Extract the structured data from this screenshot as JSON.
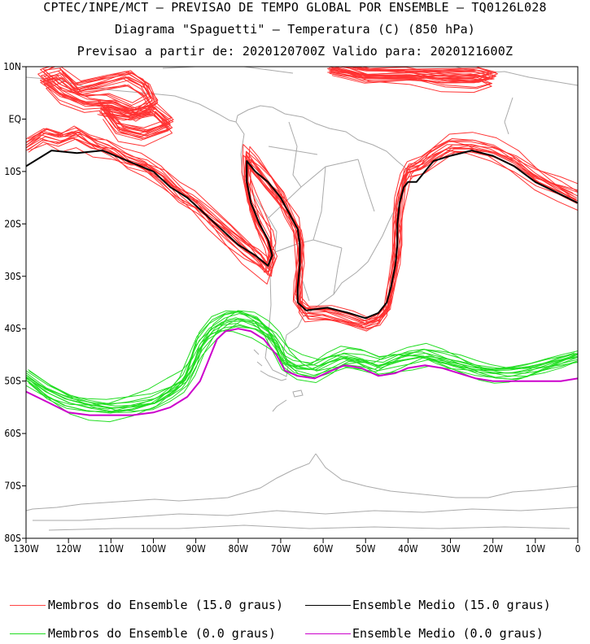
{
  "header": {
    "line1": "CPTEC/INPE/MCT – PREVISAO DE TEMPO GLOBAL POR ENSEMBLE – TQ0126L028",
    "line2": "Diagrama \"Spaguetti\" – Temperatura (C) (850 hPa)",
    "line3": "Previsao a partir de: 2020120700Z  Valido para: 2020121600Z"
  },
  "chart_data": {
    "type": "line",
    "title": "Diagrama \"Spaguetti\" – Temperatura (C) (850 hPa)",
    "xlabel": "",
    "ylabel": "",
    "xlim": [
      -130,
      0
    ],
    "ylim": [
      -80,
      10
    ],
    "x_ticks": [
      {
        "value": -130,
        "label": "130W"
      },
      {
        "value": -120,
        "label": "120W"
      },
      {
        "value": -110,
        "label": "110W"
      },
      {
        "value": -100,
        "label": "100W"
      },
      {
        "value": -90,
        "label": "90W"
      },
      {
        "value": -80,
        "label": "80W"
      },
      {
        "value": -70,
        "label": "70W"
      },
      {
        "value": -60,
        "label": "60W"
      },
      {
        "value": -50,
        "label": "50W"
      },
      {
        "value": -40,
        "label": "40W"
      },
      {
        "value": -30,
        "label": "30W"
      },
      {
        "value": -20,
        "label": "20W"
      },
      {
        "value": -10,
        "label": "10W"
      },
      {
        "value": 0,
        "label": "0"
      }
    ],
    "y_ticks": [
      {
        "value": 10,
        "label": "10N"
      },
      {
        "value": 0,
        "label": "EQ"
      },
      {
        "value": -10,
        "label": "10S"
      },
      {
        "value": -20,
        "label": "20S"
      },
      {
        "value": -30,
        "label": "30S"
      },
      {
        "value": -40,
        "label": "40S"
      },
      {
        "value": -50,
        "label": "50S"
      },
      {
        "value": -60,
        "label": "60S"
      },
      {
        "value": -70,
        "label": "70S"
      },
      {
        "value": -80,
        "label": "80S"
      }
    ],
    "series": [
      {
        "name": "Ensemble Medio (15.0 graus)",
        "color": "#000000",
        "segments": [
          [
            [
              -130,
              -9
            ],
            [
              -124,
              -6
            ],
            [
              -118,
              -6.5
            ],
            [
              -112,
              -6
            ],
            [
              -106,
              -8
            ],
            [
              -100,
              -10
            ],
            [
              -96,
              -13
            ],
            [
              -92,
              -15
            ],
            [
              -88,
              -18
            ],
            [
              -84,
              -21
            ],
            [
              -80,
              -24
            ],
            [
              -76,
              -26
            ],
            [
              -73,
              -28
            ],
            [
              -72,
              -26
            ],
            [
              -73,
              -23
            ],
            [
              -75,
              -20
            ],
            [
              -77,
              -16
            ],
            [
              -78,
              -12
            ],
            [
              -78,
              -8
            ],
            [
              -76,
              -10
            ],
            [
              -73,
              -12
            ],
            [
              -70,
              -15
            ],
            [
              -68,
              -18
            ],
            [
              -66,
              -21
            ],
            [
              -65.5,
              -24
            ],
            [
              -65.5,
              -28
            ],
            [
              -66,
              -32
            ],
            [
              -66,
              -35
            ],
            [
              -64,
              -36.5
            ],
            [
              -59,
              -36
            ],
            [
              -54,
              -37
            ],
            [
              -50,
              -38
            ],
            [
              -47,
              -37
            ],
            [
              -45,
              -35
            ],
            [
              -44,
              -32
            ],
            [
              -43,
              -28
            ],
            [
              -42.5,
              -24
            ],
            [
              -42.5,
              -20
            ],
            [
              -42,
              -16
            ],
            [
              -41,
              -13
            ],
            [
              -40,
              -12
            ],
            [
              -38,
              -12
            ],
            [
              -36,
              -10
            ],
            [
              -34,
              -8
            ],
            [
              -30,
              -7
            ],
            [
              -25,
              -6
            ],
            [
              -20,
              -7
            ],
            [
              -15,
              -9
            ],
            [
              -10,
              -12
            ],
            [
              -5,
              -14
            ],
            [
              0,
              -16
            ]
          ]
        ]
      },
      {
        "name": "Ensemble Medio (0.0 graus)",
        "color": "#cc00cc",
        "segments": [
          [
            [
              -130,
              -52
            ],
            [
              -125,
              -54
            ],
            [
              -120,
              -56
            ],
            [
              -115,
              -56.5
            ],
            [
              -110,
              -56.5
            ],
            [
              -105,
              -56.5
            ],
            [
              -100,
              -56
            ],
            [
              -96,
              -55
            ],
            [
              -92,
              -53
            ],
            [
              -89,
              -50
            ],
            [
              -87,
              -46
            ],
            [
              -85,
              -42
            ],
            [
              -83,
              -40.5
            ],
            [
              -80,
              -40
            ],
            [
              -77,
              -40.5
            ],
            [
              -74,
              -42
            ],
            [
              -71,
              -45
            ],
            [
              -69,
              -48
            ],
            [
              -66,
              -49
            ],
            [
              -62,
              -49.5
            ],
            [
              -58,
              -48
            ],
            [
              -55,
              -47
            ],
            [
              -51,
              -47.5
            ],
            [
              -47,
              -49
            ],
            [
              -43,
              -48.5
            ],
            [
              -40,
              -47.5
            ],
            [
              -36,
              -47
            ],
            [
              -32,
              -47.5
            ],
            [
              -28,
              -48.5
            ],
            [
              -24,
              -49.5
            ],
            [
              -20,
              -50
            ],
            [
              -16,
              -50
            ],
            [
              -12,
              -50
            ],
            [
              -8,
              -50
            ],
            [
              -4,
              -50
            ],
            [
              0,
              -49.5
            ]
          ]
        ]
      },
      {
        "name": "Membros do Ensemble (15.0 graus)",
        "color": "#ff3333",
        "members": 15,
        "segments": [
          [
            [
              -130,
              -5
            ],
            [
              -126,
              -3
            ],
            [
              -122,
              -4
            ],
            [
              -118,
              -3
            ],
            [
              -114,
              -5
            ],
            [
              -110,
              -6
            ],
            [
              -106,
              -8
            ],
            [
              -102,
              -9
            ],
            [
              -98,
              -11
            ],
            [
              -94,
              -14
            ],
            [
              -90,
              -16
            ],
            [
              -86,
              -19
            ],
            [
              -82,
              -22
            ],
            [
              -78,
              -25
            ],
            [
              -75,
              -27
            ],
            [
              -73,
              -29
            ],
            [
              -72,
              -26
            ],
            [
              -73,
              -23
            ],
            [
              -75,
              -20
            ],
            [
              -77,
              -16
            ],
            [
              -78,
              -12
            ],
            [
              -78,
              -7
            ],
            [
              -76,
              -9
            ],
            [
              -73,
              -12
            ],
            [
              -70,
              -15
            ],
            [
              -68,
              -18
            ],
            [
              -66,
              -21
            ],
            [
              -65.5,
              -24
            ],
            [
              -65.5,
              -28
            ],
            [
              -66,
              -32
            ],
            [
              -66,
              -35
            ],
            [
              -64,
              -37
            ],
            [
              -59,
              -37
            ],
            [
              -54,
              -38
            ],
            [
              -50,
              -39
            ],
            [
              -47,
              -38
            ],
            [
              -45,
              -36
            ],
            [
              -44,
              -32
            ],
            [
              -43,
              -28
            ],
            [
              -42.5,
              -24
            ],
            [
              -42.5,
              -20
            ],
            [
              -42,
              -16
            ],
            [
              -41,
              -12
            ],
            [
              -40,
              -10
            ],
            [
              -37,
              -9
            ],
            [
              -34,
              -7
            ],
            [
              -30,
              -5
            ],
            [
              -25,
              -5
            ],
            [
              -20,
              -6
            ],
            [
              -15,
              -8
            ],
            [
              -10,
              -11
            ],
            [
              -5,
              -13
            ],
            [
              0,
              -15
            ]
          ],
          [
            [
              -122,
              9
            ],
            [
              -118,
              6
            ],
            [
              -112,
              7
            ],
            [
              -106,
              8
            ],
            [
              -102,
              6
            ],
            [
              -100,
              3
            ],
            [
              -104,
              1
            ],
            [
              -110,
              3
            ],
            [
              -116,
              3
            ],
            [
              -122,
              5
            ],
            [
              -126,
              8
            ],
            [
              -122,
              9
            ]
          ],
          [
            [
              -112,
              2
            ],
            [
              -106,
              1
            ],
            [
              -100,
              2
            ],
            [
              -96,
              -1
            ],
            [
              -102,
              -3
            ],
            [
              -108,
              -2
            ],
            [
              -112,
              2
            ]
          ],
          [
            [
              -58,
              10
            ],
            [
              -50,
              9
            ],
            [
              -40,
              9
            ],
            [
              -32,
              9
            ],
            [
              -24,
              9
            ],
            [
              -20,
              8
            ],
            [
              -24,
              7
            ],
            [
              -32,
              7
            ],
            [
              -40,
              8
            ],
            [
              -50,
              8
            ],
            [
              -58,
              10
            ]
          ]
        ]
      },
      {
        "name": "Membros do Ensemble (0.0 graus)",
        "color": "#22dd22",
        "members": 15,
        "segments": [
          [
            [
              -130,
              -49
            ],
            [
              -125,
              -52
            ],
            [
              -120,
              -54
            ],
            [
              -115,
              -55
            ],
            [
              -110,
              -55.5
            ],
            [
              -105,
              -55
            ],
            [
              -100,
              -54
            ],
            [
              -96,
              -52
            ],
            [
              -93,
              -50
            ],
            [
              -91,
              -47
            ],
            [
              -89,
              -43
            ],
            [
              -86,
              -40
            ],
            [
              -83,
              -38.5
            ],
            [
              -80,
              -38
            ],
            [
              -76,
              -39
            ],
            [
              -73,
              -41
            ],
            [
              -71,
              -43
            ],
            [
              -69,
              -46
            ],
            [
              -66,
              -47.5
            ],
            [
              -62,
              -48
            ],
            [
              -58,
              -46.5
            ],
            [
              -55,
              -45.5
            ],
            [
              -51,
              -46
            ],
            [
              -47,
              -47
            ],
            [
              -43,
              -46
            ],
            [
              -40,
              -45.5
            ],
            [
              -36,
              -45
            ],
            [
              -32,
              -46
            ],
            [
              -28,
              -47
            ],
            [
              -24,
              -48
            ],
            [
              -20,
              -48.5
            ],
            [
              -16,
              -48.5
            ],
            [
              -12,
              -48
            ],
            [
              -8,
              -47
            ],
            [
              -4,
              -46
            ],
            [
              0,
              -45
            ]
          ]
        ]
      }
    ],
    "legend": [
      {
        "label": "Membros do Ensemble (15.0 graus)",
        "color": "#ff3333"
      },
      {
        "label": "Ensemble Medio (15.0 graus)",
        "color": "#000000"
      },
      {
        "label": "Membros do Ensemble (0.0 graus)",
        "color": "#22dd22"
      },
      {
        "label": "Ensemble Medio (0.0 graus)",
        "color": "#cc00cc"
      }
    ],
    "legend_position": "bottom",
    "grid": false
  }
}
